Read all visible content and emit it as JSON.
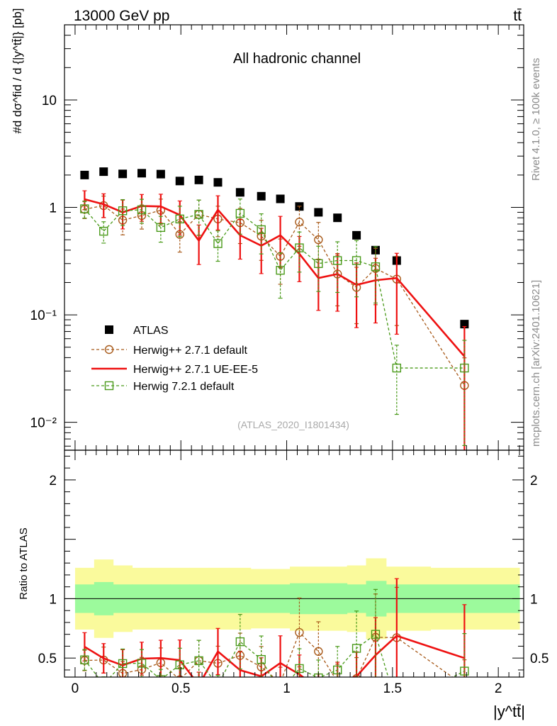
{
  "header": {
    "energy_label": "13000 GeV pp",
    "process_label": "tt̄"
  },
  "side_labels": {
    "rivet": "Rivet 4.1.0, ≥ 100k events",
    "mcplots": "mcplots.cern.ch [arXiv:2401.10621]"
  },
  "chart_data": [
    {
      "type": "scatter",
      "panel": "main",
      "title": "All hadronic channel",
      "ylabel": "#d dσ^fid / d {|y^tt̄|} [pb]",
      "xlabel": "|y^tt̄|",
      "yscale": "log",
      "xlim": [
        -0.05,
        2.12
      ],
      "ylim": [
        0.0055,
        50
      ],
      "ytick_labels": [
        "10⁻²",
        "10⁻¹",
        "1",
        "10"
      ],
      "xtick_labels": [
        "0",
        "0.5",
        "1",
        "1.5",
        "2"
      ],
      "legend_position": "lower-left",
      "watermark": "(ATLAS_2020_I1801434)",
      "series": [
        {
          "name": "ATLAS",
          "color": "#000000",
          "style": "marker",
          "x": [
            0.045,
            0.135,
            0.225,
            0.315,
            0.405,
            0.495,
            0.585,
            0.675,
            0.78,
            0.88,
            0.97,
            1.06,
            1.15,
            1.24,
            1.33,
            1.42,
            1.52,
            1.84
          ],
          "y": [
            2.0,
            2.15,
            2.05,
            2.08,
            2.04,
            1.76,
            1.8,
            1.71,
            1.38,
            1.27,
            1.2,
            1.02,
            0.9,
            0.8,
            0.55,
            0.4,
            0.32,
            0.082
          ]
        },
        {
          "name": "Herwig++ 2.7.1 default",
          "color": "#a85a1a",
          "style": "dashed-circle",
          "x": [
            0.045,
            0.135,
            0.225,
            0.315,
            0.405,
            0.495,
            0.585,
            0.675,
            0.78,
            0.88,
            0.97,
            1.06,
            1.15,
            1.24,
            1.33,
            1.42,
            1.52,
            1.84
          ],
          "y": [
            0.96,
            1.04,
            0.76,
            0.84,
            0.94,
            0.56,
            0.86,
            0.78,
            0.72,
            0.54,
            0.35,
            0.73,
            0.5,
            0.24,
            0.18,
            0.27,
            0.215,
            0.022
          ]
        },
        {
          "name": "Herwig++ 2.7.1 UE-EE-5",
          "color": "#ee1111",
          "style": "solid-line",
          "x": [
            0.045,
            0.135,
            0.225,
            0.315,
            0.405,
            0.495,
            0.585,
            0.675,
            0.78,
            0.88,
            0.97,
            1.06,
            1.15,
            1.24,
            1.33,
            1.42,
            1.52,
            1.84
          ],
          "y": [
            1.19,
            1.07,
            0.9,
            1.03,
            1.02,
            0.85,
            0.49,
            0.95,
            0.55,
            0.44,
            0.55,
            0.37,
            0.22,
            0.24,
            0.19,
            0.21,
            0.22,
            0.041
          ]
        },
        {
          "name": "Herwig 7.2.1 default",
          "color": "#4a9a1a",
          "style": "dashed-square",
          "x": [
            0.045,
            0.135,
            0.225,
            0.315,
            0.405,
            0.495,
            0.585,
            0.675,
            0.78,
            0.88,
            0.97,
            1.06,
            1.15,
            1.24,
            1.33,
            1.42,
            1.52,
            1.84
          ],
          "y": [
            0.97,
            0.6,
            0.93,
            0.95,
            0.65,
            0.78,
            0.86,
            0.46,
            0.88,
            0.62,
            0.26,
            0.42,
            0.3,
            0.32,
            0.32,
            0.28,
            0.032,
            0.032
          ]
        }
      ]
    },
    {
      "type": "line",
      "panel": "ratio",
      "ylabel": "Ratio to ATLAS",
      "xlabel": "|y^tt̄|",
      "ylim": [
        0.34,
        2.25
      ],
      "ytick_labels": [
        "0.5",
        "1",
        "2"
      ],
      "bands": {
        "colors": {
          "inner": "#9cfa9c",
          "outer": "#fafa9c"
        },
        "inner": [
          0.12,
          0.14,
          0.12,
          0.12,
          0.12,
          0.12,
          0.12,
          0.12,
          0.12,
          0.12,
          0.12,
          0.13,
          0.13,
          0.13,
          0.12,
          0.15,
          0.12,
          0.12
        ],
        "outer": [
          0.26,
          0.33,
          0.28,
          0.26,
          0.26,
          0.26,
          0.26,
          0.26,
          0.26,
          0.25,
          0.25,
          0.27,
          0.27,
          0.27,
          0.28,
          0.34,
          0.27,
          0.26
        ]
      },
      "reference_line": 1
    }
  ]
}
